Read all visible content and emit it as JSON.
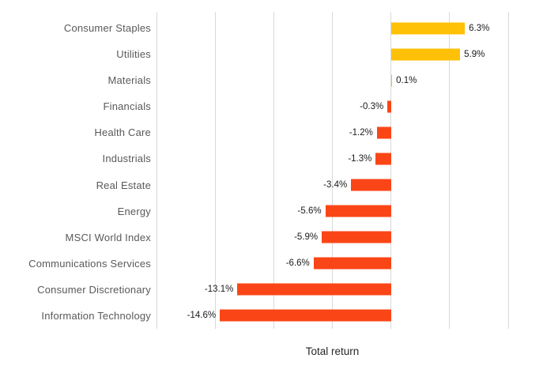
{
  "chart_data": {
    "type": "bar",
    "orientation": "horizontal",
    "title": "",
    "xlabel": "Total return",
    "ylabel": "",
    "categories": [
      "Consumer Staples",
      "Utilities",
      "Materials",
      "Financials",
      "Health Care",
      "Industrials",
      "Real Estate",
      "Energy",
      "MSCI World Index",
      "Communications Services",
      "Consumer Discretionary",
      "Information Technology"
    ],
    "values": [
      6.3,
      5.9,
      0.1,
      -0.3,
      -1.2,
      -1.3,
      -3.4,
      -5.6,
      -5.9,
      -6.6,
      -13.1,
      -14.6
    ],
    "labels": [
      "6.3%",
      "5.9%",
      "0.1%",
      "-0.3%",
      "-1.2%",
      "-1.3%",
      "-3.4%",
      "-5.6%",
      "-5.9%",
      "-6.6%",
      "-13.1%",
      "-14.6%"
    ],
    "xlim": [
      -20,
      10
    ],
    "gridline_step": 5,
    "grid": true,
    "legend": false,
    "axis_tick_labels": false,
    "positive_color": "#FFC107",
    "negative_color": "#FA4616",
    "gridline_color": "#D9D9D9",
    "category_label_color": "#595959",
    "value_label_color": "#1A1A1A"
  }
}
